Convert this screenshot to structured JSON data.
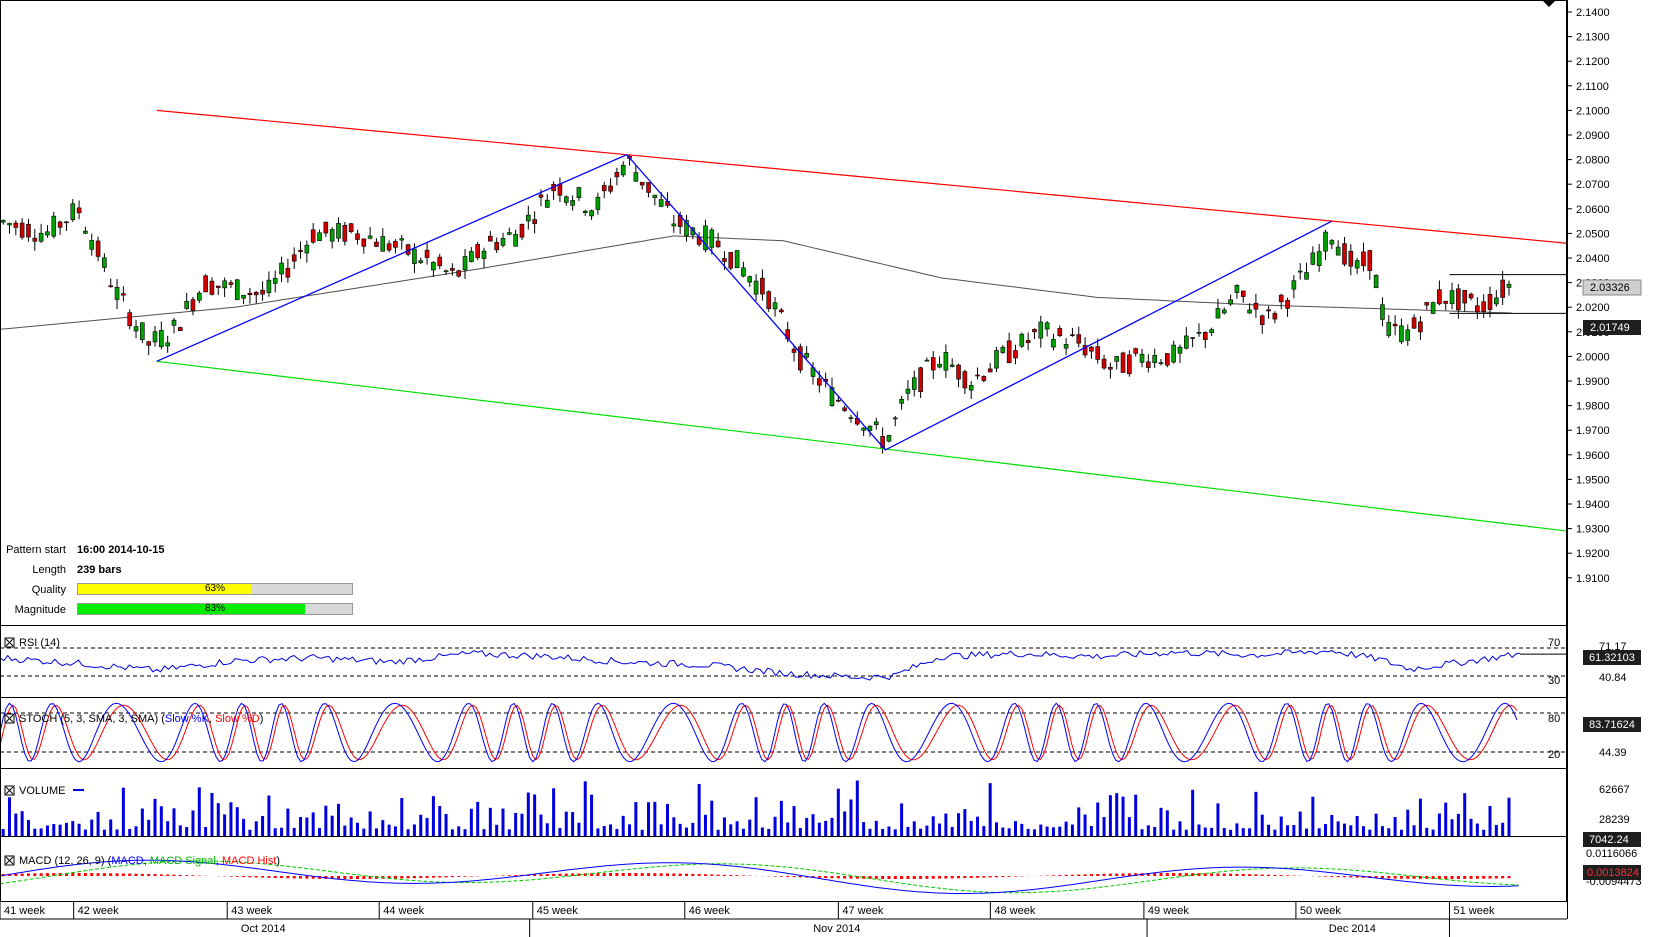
{
  "chart_data": {
    "type": "candlestick",
    "main": {
      "ylim": [
        1.89,
        2.14
      ],
      "y_ticks": [
        "2.1400",
        "2.1300",
        "2.1200",
        "2.1100",
        "2.1000",
        "2.0900",
        "2.0800",
        "2.0700",
        "2.0600",
        "2.0500",
        "2.0400",
        "2.0300",
        "2.0200",
        "2.0100",
        "2.0000",
        "1.9900",
        "1.9800",
        "1.9700",
        "1.9600",
        "1.9500",
        "1.9400",
        "1.9300",
        "1.9200",
        "1.9100"
      ],
      "last_price_label": "2.03326",
      "ma_value_label": "2.01749",
      "resistance_line": {
        "from": [
          0.1,
          2.1
        ],
        "to": [
          1.0,
          2.046
        ]
      },
      "support_line": {
        "from": [
          0.1,
          1.998
        ],
        "to": [
          1.0,
          1.929
        ]
      },
      "zigzag": [
        [
          0.1,
          1.998
        ],
        [
          0.4,
          2.082
        ],
        [
          0.565,
          1.962
        ],
        [
          0.85,
          2.055
        ]
      ],
      "candles_anchor": [
        [
          0.0,
          2.055
        ],
        [
          0.03,
          2.05
        ],
        [
          0.05,
          2.06
        ],
        [
          0.075,
          2.025
        ],
        [
          0.095,
          2.005
        ],
        [
          0.11,
          2.01
        ],
        [
          0.13,
          2.03
        ],
        [
          0.17,
          2.025
        ],
        [
          0.2,
          2.05
        ],
        [
          0.23,
          2.05
        ],
        [
          0.27,
          2.04
        ],
        [
          0.29,
          2.032
        ],
        [
          0.31,
          2.045
        ],
        [
          0.33,
          2.05
        ],
        [
          0.355,
          2.07
        ],
        [
          0.38,
          2.06
        ],
        [
          0.4,
          2.08
        ],
        [
          0.43,
          2.055
        ],
        [
          0.46,
          2.045
        ],
        [
          0.49,
          2.025
        ],
        [
          0.51,
          2.0
        ],
        [
          0.53,
          1.985
        ],
        [
          0.55,
          1.975
        ],
        [
          0.565,
          1.965
        ],
        [
          0.58,
          1.985
        ],
        [
          0.6,
          2.0
        ],
        [
          0.62,
          1.99
        ],
        [
          0.64,
          2.0
        ],
        [
          0.665,
          2.01
        ],
        [
          0.69,
          2.005
        ],
        [
          0.71,
          1.995
        ],
        [
          0.73,
          2.0
        ],
        [
          0.75,
          2.0
        ],
        [
          0.77,
          2.01
        ],
        [
          0.79,
          2.025
        ],
        [
          0.81,
          2.015
        ],
        [
          0.835,
          2.035
        ],
        [
          0.85,
          2.05
        ],
        [
          0.865,
          2.035
        ],
        [
          0.875,
          2.04
        ],
        [
          0.885,
          2.01
        ],
        [
          0.9,
          2.01
        ],
        [
          0.92,
          2.025
        ],
        [
          0.945,
          2.02
        ],
        [
          0.965,
          2.03
        ]
      ],
      "sma_anchor": [
        [
          0.0,
          2.011
        ],
        [
          0.15,
          2.02
        ],
        [
          0.3,
          2.035
        ],
        [
          0.43,
          2.049
        ],
        [
          0.5,
          2.047
        ],
        [
          0.6,
          2.032
        ],
        [
          0.7,
          2.024
        ],
        [
          0.8,
          2.021
        ],
        [
          0.9,
          2.019
        ],
        [
          0.97,
          2.0175
        ]
      ]
    },
    "pattern_info": {
      "pattern_start_label": "Pattern start",
      "pattern_start": "16:00 2014-10-15",
      "length_label": "Length",
      "length": "239 bars",
      "quality_label": "Quality",
      "quality": 63,
      "quality_text": "63%",
      "magnitude_label": "Magnitude",
      "magnitude": 83,
      "magnitude_text": "83%"
    },
    "rsi": {
      "title": "RSI (14)",
      "levels": [
        70,
        30
      ],
      "level_labels": [
        "70",
        "30"
      ],
      "axis_labels": [
        "71.17",
        "40.84"
      ],
      "current_label": "61.32103",
      "anchor": [
        [
          0,
          56
        ],
        [
          0.05,
          48
        ],
        [
          0.1,
          38
        ],
        [
          0.15,
          52
        ],
        [
          0.2,
          56
        ],
        [
          0.25,
          50
        ],
        [
          0.3,
          62
        ],
        [
          0.35,
          58
        ],
        [
          0.4,
          50
        ],
        [
          0.45,
          46
        ],
        [
          0.5,
          34
        ],
        [
          0.55,
          28
        ],
        [
          0.57,
          30
        ],
        [
          0.6,
          58
        ],
        [
          0.65,
          62
        ],
        [
          0.7,
          58
        ],
        [
          0.75,
          64
        ],
        [
          0.8,
          60
        ],
        [
          0.85,
          66
        ],
        [
          0.88,
          54
        ],
        [
          0.9,
          40
        ],
        [
          0.94,
          52
        ],
        [
          0.97,
          61.3
        ]
      ]
    },
    "stoch": {
      "title": "STOCH (5, 3, SMA, 3, SMA)",
      "k_label": "Slow %K",
      "d_label": "Slow %D",
      "levels": [
        80,
        20
      ],
      "level_labels": [
        "80",
        "20"
      ],
      "axis_labels": [
        "44.39"
      ],
      "current_label": "83.71624"
    },
    "volume": {
      "title": "VOLUME",
      "axis_labels": [
        "62667",
        "28239"
      ],
      "current_label": "7042.24"
    },
    "macd": {
      "title": "MACD (12, 26, 9)",
      "macd_label": "MACD",
      "signal_label": "MACD Signal",
      "hist_label": "MACD Hist",
      "axis_labels": [
        "0.0116066",
        "-0.0094473"
      ],
      "current_label": "0.0013824"
    },
    "x_axis": {
      "week_labels": [
        "41 week",
        "42 week",
        "43 week",
        "44 week",
        "45 week",
        "46 week",
        "47 week",
        "48 week",
        "49 week",
        "50 week",
        "51 week"
      ],
      "week_positions": [
        0.0,
        0.047,
        0.145,
        0.242,
        0.34,
        0.437,
        0.535,
        0.632,
        0.73,
        0.827,
        0.925
      ],
      "month_labels": [
        "Oct 2014",
        "Nov 2014",
        "Dec 2014"
      ],
      "month_positions": [
        0.168,
        0.534,
        0.863
      ],
      "month_separators": [
        0.338,
        0.732,
        0.925
      ]
    },
    "colors": {
      "resistance": "#ff0000",
      "support": "#00e000",
      "zigzag": "#0000ff",
      "sma": "#505050",
      "candle_up": "#00a000",
      "candle_down": "#d00000",
      "rsi": "#0000dd",
      "stoch_k": "#0000ff",
      "stoch_d": "#ff0000",
      "volume": "#0000dd",
      "macd": "#0000ff",
      "macd_signal": "#00cc00",
      "macd_hist": "#ff0000",
      "quality_fill": "#ffff00",
      "magnitude_fill": "#00ee00",
      "label_box": "#1e1e1e",
      "last_price_box": "#cfcfcf"
    }
  }
}
